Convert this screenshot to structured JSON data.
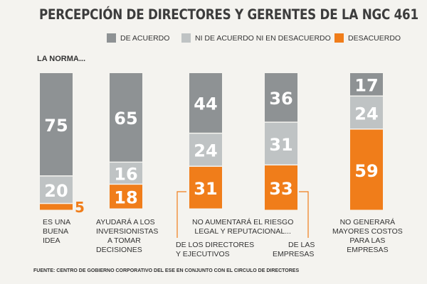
{
  "chart_data": {
    "type": "bar",
    "stacked": true,
    "title": "PERCEPCIÓN DE DIRECTORES Y GERENTES DE LA NGC 461",
    "subtitle": "LA NORMA...",
    "legend": {
      "placement": "top",
      "entries": [
        {
          "name": "DE ACUERDO",
          "color": "#8e9294"
        },
        {
          "name": "NI DE ACUERDO NI EN DESACUERDO",
          "color": "#bfc3c4"
        },
        {
          "name": "DESACUERDO",
          "color": "#f07d1a"
        }
      ]
    },
    "categories": [
      "ES UNA BUENA IDEA",
      "AYUDARÁ A LOS INVERSIONISTAS A TOMAR DECISIONES",
      "NO AUMENTARÁ EL RIESGO LEGAL Y REPUTACIONAL... DE LOS DIRECTORES Y EJECUTIVOS",
      "NO AUMENTARÁ EL RIESGO LEGAL Y REPUTACIONAL... DE LAS EMPRESAS",
      "NO GENERARÁ MAYORES COSTOS PARA LAS EMPRESAS"
    ],
    "series": [
      {
        "name": "DE ACUERDO",
        "values": [
          75,
          65,
          44,
          36,
          17
        ]
      },
      {
        "name": "NI DE ACUERDO NI EN DESACUERDO",
        "values": [
          20,
          16,
          24,
          31,
          24
        ]
      },
      {
        "name": "DESACUERDO",
        "values": [
          5,
          18,
          31,
          33,
          59
        ]
      }
    ],
    "category_labels": {
      "c1": [
        "ES UNA",
        "BUENA",
        "IDEA"
      ],
      "c2": [
        "AYUDARÁ A LOS",
        "INVERSIONISTAS",
        "A TOMAR",
        "DECISIONES"
      ],
      "group": [
        "NO AUMENTARÁ EL RIESGO",
        "LEGAL Y REPUTACIONAL..."
      ],
      "c3": [
        "DE LOS DIRECTORES",
        "Y EJECUTIVOS"
      ],
      "c4": [
        "DE LAS",
        "EMPRESAS"
      ],
      "c5": [
        "NO GENERARÁ",
        "MAYORES COSTOS",
        "PARA LAS",
        "EMPRESAS"
      ]
    },
    "source": "FUENTE: CENTRO DE GOBIERNO CORPORATIVO DEL ESE EN CONJUNTO CON EL CIRCULO DE DIRECTORES"
  }
}
